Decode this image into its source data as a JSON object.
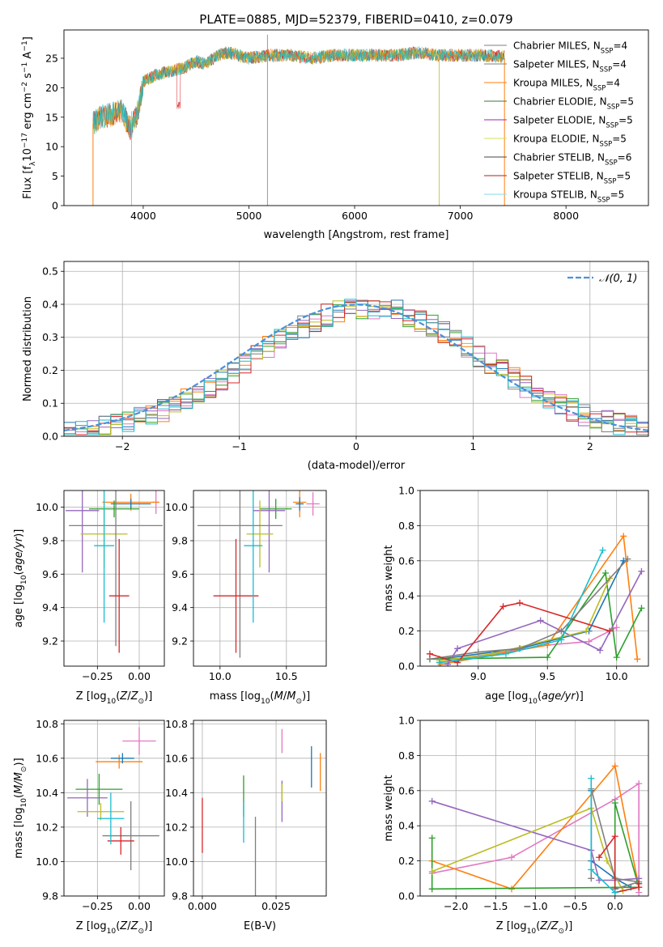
{
  "figure_title": "PLATE=0885, MJD=52379, FIBERID=0410, z=0.079",
  "colors": [
    "#e377c2",
    "#ff7f0e",
    "#1f77b4",
    "#2ca02c",
    "#9467bd",
    "#bcbd22",
    "#7f7f7f",
    "#d62728",
    "#17becf"
  ],
  "chart_data": [
    {
      "id": "spectrum",
      "type": "line",
      "title": "PLATE=0885, MJD=52379, FIBERID=0410, z=0.079",
      "xlabel": "wavelength [Angstrom, rest frame]",
      "ylabel": "Flux [f_λ 10^-17 erg cm^-2 s^-1 A^-1]",
      "xlim": [
        3250,
        8780
      ],
      "ylim": [
        0,
        29.8
      ],
      "xticks": [
        4000,
        5000,
        6000,
        7000,
        8000
      ],
      "yticks": [
        0,
        5,
        10,
        15,
        20,
        25
      ],
      "grid": false,
      "legend_position": "right",
      "legend": [
        {
          "name": "Chabrier MILES, N_SSP=4",
          "color": "#7f7f7f"
        },
        {
          "name": "Salpeter MILES, N_SSP=4",
          "color": "#7f7f7f"
        },
        {
          "name": "Kroupa MILES, N_SSP=4",
          "color": "#ff7f0e"
        },
        {
          "name": "Chabrier ELODIE, N_SSP=5",
          "color": "#3a7a3a"
        },
        {
          "name": "Salpeter ELODIE, N_SSP=5",
          "color": "#9c27b0"
        },
        {
          "name": "Kroupa ELODIE, N_SSP=5",
          "color": "#d4e157"
        },
        {
          "name": "Chabrier STELIB, N_SSP=6",
          "color": "#444444"
        },
        {
          "name": "Salpeter STELIB, N_SSP=5",
          "color": "#b71c1c"
        },
        {
          "name": "Kroupa STELIB, N_SSP=5",
          "color": "#80deea"
        }
      ],
      "continuum_points": [
        [
          3525,
          14
        ],
        [
          3600,
          15
        ],
        [
          3700,
          15.5
        ],
        [
          3800,
          16
        ],
        [
          3880,
          13
        ],
        [
          3950,
          16
        ],
        [
          4000,
          21
        ],
        [
          4100,
          22
        ],
        [
          4200,
          22.5
        ],
        [
          4300,
          23
        ],
        [
          4400,
          23.5
        ],
        [
          4500,
          24.5
        ],
        [
          4600,
          24
        ],
        [
          4700,
          25.5
        ],
        [
          4800,
          26
        ],
        [
          5000,
          25
        ],
        [
          5200,
          25.5
        ],
        [
          5400,
          25.5
        ],
        [
          5600,
          25
        ],
        [
          5800,
          25.5
        ],
        [
          6000,
          25.5
        ],
        [
          6200,
          25.5
        ],
        [
          6400,
          25.5
        ],
        [
          6600,
          26
        ],
        [
          6800,
          25.5
        ],
        [
          7000,
          25.5
        ],
        [
          7200,
          25.5
        ],
        [
          7400,
          25.3
        ]
      ]
    },
    {
      "id": "residuals",
      "type": "step",
      "xlabel": "(data-model)/error",
      "ylabel": "Normed distribution",
      "xlim": [
        -2.5,
        2.5
      ],
      "ylim": [
        0,
        0.53
      ],
      "xticks": [
        -2,
        -1,
        0,
        1,
        2
      ],
      "yticks": [
        0.0,
        0.1,
        0.2,
        0.3,
        0.4,
        0.5
      ],
      "grid": true,
      "legend": [
        {
          "name": "𝒩(0, 1)",
          "color": "#4a90d9",
          "style": "dashed"
        }
      ],
      "bin_edges_start": -2.5,
      "bin_width": 0.1,
      "bin_count": 50
    },
    {
      "id": "age-vs-Z",
      "type": "errorbar",
      "xlabel": "Z [log10(Z/Z⊙)]",
      "ylabel": "age [log10(age/yr)]",
      "xlim": [
        -0.45,
        0.15
      ],
      "ylim": [
        9.05,
        10.1
      ],
      "xticks": [
        -0.25,
        0.0
      ],
      "xticklabels": [
        "−0.25",
        "0.00"
      ],
      "yticks": [
        9.2,
        9.4,
        9.6,
        9.8,
        10.0
      ],
      "grid": true,
      "points": [
        {
          "x": 0.1,
          "y": 10.03,
          "xerr": 0.02,
          "yerr": 0.07
        },
        {
          "x": -0.05,
          "y": 10.03,
          "xerr": 0.17,
          "yerr": 0.05
        },
        {
          "x": -0.05,
          "y": 10.02,
          "xerr": 0.12,
          "yerr": 0.03
        },
        {
          "x": -0.15,
          "y": 9.99,
          "xerr": 0.15,
          "yerr": 0.05
        },
        {
          "x": -0.34,
          "y": 9.98,
          "xerr": 0.1,
          "yerr": 0.37
        },
        {
          "x": -0.21,
          "y": 9.84,
          "xerr": 0.14,
          "yerr": 0.2
        },
        {
          "x": -0.14,
          "y": 9.89,
          "xerr": 0.28,
          "yerr": 0.72
        },
        {
          "x": -0.12,
          "y": 9.47,
          "xerr": 0.06,
          "yerr": 0.34
        },
        {
          "x": -0.21,
          "y": 9.77,
          "xerr": 0.06,
          "yerr": 0.46
        }
      ]
    },
    {
      "id": "age-vs-mass",
      "type": "errorbar",
      "xlabel": "mass [log10(M/M⊙)]",
      "ylabel": "",
      "xlim": [
        9.8,
        10.8
      ],
      "ylim": [
        9.05,
        10.1
      ],
      "xticks": [
        10.0,
        10.5
      ],
      "xticklabels": [
        "10.0",
        "10.5"
      ],
      "yticks": [
        9.2,
        9.4,
        9.6,
        9.8,
        10.0
      ],
      "grid": true,
      "points": [
        {
          "x": 10.7,
          "y": 10.02,
          "xerr": 0.05,
          "yerr": 0.07
        },
        {
          "x": 10.6,
          "y": 10.03,
          "xerr": 0.05,
          "yerr": 0.09
        },
        {
          "x": 10.6,
          "y": 10.02,
          "xerr": 0.03,
          "yerr": 0.04
        },
        {
          "x": 10.42,
          "y": 9.99,
          "xerr": 0.12,
          "yerr": 0.06
        },
        {
          "x": 10.37,
          "y": 9.98,
          "xerr": 0.12,
          "yerr": 0.37
        },
        {
          "x": 10.3,
          "y": 9.84,
          "xerr": 0.1,
          "yerr": 0.2
        },
        {
          "x": 10.15,
          "y": 9.89,
          "xerr": 0.32,
          "yerr": 0.79
        },
        {
          "x": 10.12,
          "y": 9.47,
          "xerr": 0.17,
          "yerr": 0.34
        },
        {
          "x": 10.25,
          "y": 9.77,
          "xerr": 0.07,
          "yerr": 0.46
        }
      ]
    },
    {
      "id": "weight-vs-age",
      "type": "line",
      "xlabel": "age [log10(age/yr)]",
      "ylabel": "mass weight",
      "xlim": [
        8.58,
        10.23
      ],
      "ylim": [
        0,
        1.0
      ],
      "xticks": [
        9.0,
        9.5,
        10.0
      ],
      "yticks": [
        0.0,
        0.2,
        0.4,
        0.6,
        0.8,
        1.0
      ],
      "grid": true,
      "series": [
        {
          "color": "#e377c2",
          "x": [
            8.72,
            9.5,
            9.8,
            10.0
          ],
          "y": [
            0.02,
            0.12,
            0.14,
            0.22
          ]
        },
        {
          "color": "#ff7f0e",
          "x": [
            8.73,
            9.5,
            10.05,
            10.15
          ],
          "y": [
            0.01,
            0.12,
            0.74,
            0.04
          ]
        },
        {
          "color": "#1f77b4",
          "x": [
            8.72,
            9.3,
            9.8,
            10.05
          ],
          "y": [
            0.04,
            0.1,
            0.2,
            0.6
          ]
        },
        {
          "color": "#2ca02c",
          "x": [
            8.65,
            9.5,
            9.92,
            10.0,
            10.18
          ],
          "y": [
            0.04,
            0.05,
            0.53,
            0.05,
            0.33
          ]
        },
        {
          "color": "#9467bd",
          "x": [
            8.78,
            8.85,
            9.45,
            9.88,
            10.18
          ],
          "y": [
            0.01,
            0.1,
            0.26,
            0.09,
            0.54
          ]
        },
        {
          "color": "#bcbd22",
          "x": [
            8.72,
            9.1,
            9.78,
            9.95
          ],
          "y": [
            0.03,
            0.07,
            0.2,
            0.5
          ]
        },
        {
          "color": "#7f7f7f",
          "x": [
            8.65,
            9.0,
            9.3,
            9.6,
            10.08
          ],
          "y": [
            0.04,
            0.08,
            0.1,
            0.2,
            0.61
          ]
        },
        {
          "color": "#d62728",
          "x": [
            8.65,
            8.85,
            9.18,
            9.3,
            9.95
          ],
          "y": [
            0.07,
            0.02,
            0.34,
            0.36,
            0.2
          ]
        },
        {
          "color": "#17becf",
          "x": [
            8.72,
            9.2,
            9.6,
            9.9
          ],
          "y": [
            0.02,
            0.07,
            0.15,
            0.66
          ]
        }
      ]
    },
    {
      "id": "mass-vs-Z",
      "type": "errorbar",
      "xlabel": "Z [log10(Z/Z⊙)]",
      "ylabel": "mass [log10(M/M⊙)]",
      "xlim": [
        -0.45,
        0.15
      ],
      "ylim": [
        9.8,
        10.82
      ],
      "xticks": [
        -0.25,
        0.0
      ],
      "xticklabels": [
        "−0.25",
        "0.00"
      ],
      "yticks": [
        9.8,
        10.0,
        10.2,
        10.4,
        10.6,
        10.8
      ],
      "grid": true,
      "points": [
        {
          "x": 0.0,
          "y": 10.7,
          "xerr": 0.1,
          "yerr": 0.08
        },
        {
          "x": -0.12,
          "y": 10.58,
          "xerr": 0.14,
          "yerr": 0.04
        },
        {
          "x": -0.1,
          "y": 10.6,
          "xerr": 0.07,
          "yerr": 0.03
        },
        {
          "x": -0.24,
          "y": 10.42,
          "xerr": 0.14,
          "yerr": 0.09
        },
        {
          "x": -0.31,
          "y": 10.37,
          "xerr": 0.12,
          "yerr": 0.11
        },
        {
          "x": -0.23,
          "y": 10.29,
          "xerr": 0.14,
          "yerr": 0.05
        },
        {
          "x": -0.05,
          "y": 10.15,
          "xerr": 0.17,
          "yerr": 0.2
        },
        {
          "x": -0.11,
          "y": 10.12,
          "xerr": 0.08,
          "yerr": 0.08
        },
        {
          "x": -0.17,
          "y": 10.25,
          "xerr": 0.08,
          "yerr": 0.15
        }
      ]
    },
    {
      "id": "mass-vs-ebv",
      "type": "errorbar",
      "xlabel": "E(B-V)",
      "ylabel": "",
      "xlim": [
        -0.003,
        0.042
      ],
      "ylim": [
        9.8,
        10.82
      ],
      "xticks": [
        0.0,
        0.025
      ],
      "xticklabels": [
        "0.000",
        "0.025"
      ],
      "yticks": [
        9.8,
        10.0,
        10.2,
        10.4,
        10.6,
        10.8
      ],
      "grid": true,
      "points": [
        {
          "x": 0.027,
          "y": 10.7,
          "xerr": 0,
          "yerr": 0.07
        },
        {
          "x": 0.04,
          "y": 10.52,
          "xerr": 0,
          "yerr": 0.11
        },
        {
          "x": 0.037,
          "y": 10.55,
          "xerr": 0,
          "yerr": 0.12
        },
        {
          "x": 0.014,
          "y": 10.38,
          "xerr": 0,
          "yerr": 0.12
        },
        {
          "x": 0.027,
          "y": 10.35,
          "xerr": 0,
          "yerr": 0.12
        },
        {
          "x": 0.027,
          "y": 10.4,
          "xerr": 0,
          "yerr": 0.05
        },
        {
          "x": 0.018,
          "y": 10.0,
          "xerr": 0,
          "yerr": 0.26
        },
        {
          "x": 0.0,
          "y": 10.21,
          "xerr": 0,
          "yerr": 0.16
        },
        {
          "x": 0.014,
          "y": 10.23,
          "xerr": 0,
          "yerr": 0.12
        }
      ]
    },
    {
      "id": "weight-vs-Z",
      "type": "line",
      "xlabel": "Z [log10(Z/Z⊙)]",
      "ylabel": "mass weight",
      "xlim": [
        -2.45,
        0.42
      ],
      "ylim": [
        0,
        1.0
      ],
      "xticks": [
        -2.0,
        -1.5,
        -1.0,
        -0.5,
        0.0
      ],
      "xticklabels": [
        "−2.0",
        "−1.5",
        "−1.0",
        "−0.5",
        "0.0"
      ],
      "yticks": [
        0.0,
        0.2,
        0.4,
        0.6,
        0.8,
        1.0
      ],
      "grid": true,
      "series": [
        {
          "color": "#e377c2",
          "x": [
            -2.3,
            -1.3,
            0.0,
            0.3,
            0.3
          ],
          "y": [
            0.13,
            0.22,
            0.55,
            0.64,
            0.02
          ]
        },
        {
          "color": "#ff7f0e",
          "x": [
            -2.3,
            -1.3,
            0.0,
            0.3
          ],
          "y": [
            0.2,
            0.04,
            0.74,
            0.05
          ]
        },
        {
          "color": "#1f77b4",
          "x": [
            -0.3,
            -0.3,
            0.0,
            0.2
          ],
          "y": [
            0.6,
            0.2,
            0.1,
            0.05
          ]
        },
        {
          "color": "#2ca02c",
          "x": [
            -2.3,
            -2.3,
            0.3,
            0.0,
            0.0
          ],
          "y": [
            0.33,
            0.04,
            0.05,
            0.53,
            0.05
          ]
        },
        {
          "color": "#9467bd",
          "x": [
            -2.3,
            -0.3,
            -0.2,
            0.0,
            0.3
          ],
          "y": [
            0.54,
            0.26,
            0.09,
            0.09,
            0.1
          ]
        },
        {
          "color": "#bcbd22",
          "x": [
            -2.3,
            -0.3,
            -0.1,
            0.1
          ],
          "y": [
            0.14,
            0.5,
            0.2,
            0.03
          ]
        },
        {
          "color": "#7f7f7f",
          "x": [
            -0.3,
            -0.3,
            0.0,
            0.3,
            0.0
          ],
          "y": [
            0.1,
            0.61,
            0.1,
            0.08,
            0.04
          ]
        },
        {
          "color": "#d62728",
          "x": [
            -0.2,
            0.0,
            0.0,
            0.3,
            0.3
          ],
          "y": [
            0.22,
            0.34,
            0.02,
            0.05,
            0.07
          ]
        },
        {
          "color": "#17becf",
          "x": [
            -0.3,
            -0.3,
            0.0
          ],
          "y": [
            0.67,
            0.15,
            0.02
          ]
        }
      ]
    }
  ]
}
